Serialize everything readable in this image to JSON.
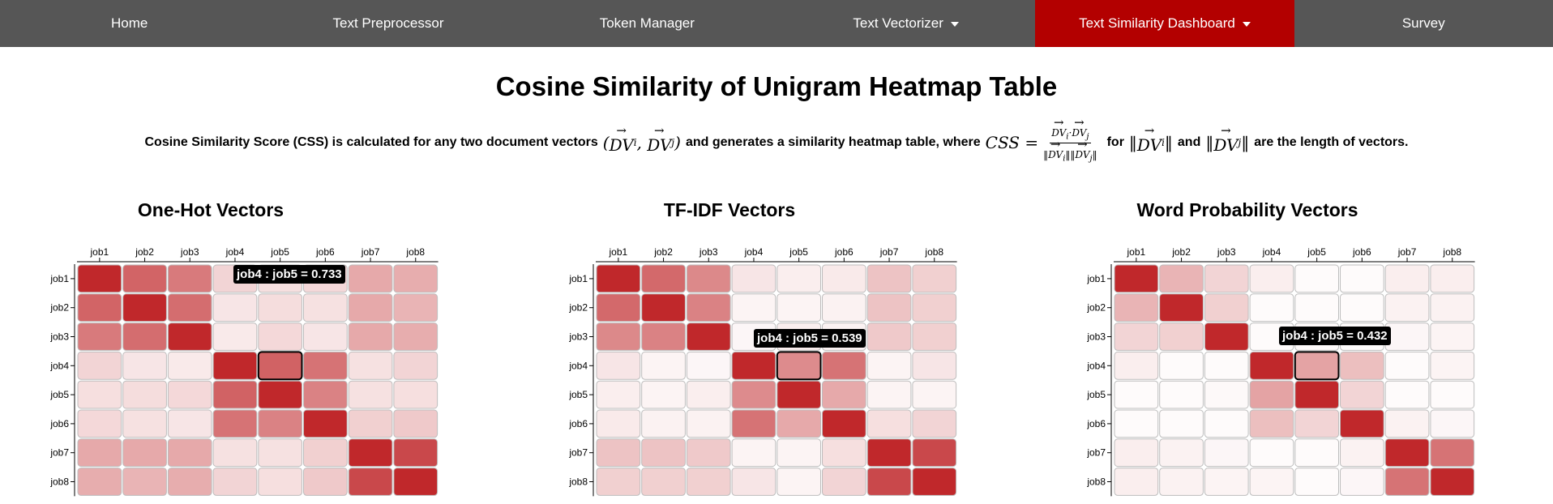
{
  "nav": {
    "items": [
      {
        "label": "Home",
        "dropdown": false,
        "active": false
      },
      {
        "label": "Text Preprocessor",
        "dropdown": false,
        "active": false
      },
      {
        "label": "Token Manager",
        "dropdown": false,
        "active": false
      },
      {
        "label": "Text Vectorizer",
        "dropdown": true,
        "active": false
      },
      {
        "label": "Text Similarity Dashboard",
        "dropdown": true,
        "active": true
      },
      {
        "label": "Survey",
        "dropdown": false,
        "active": false
      }
    ]
  },
  "page": {
    "title": "Cosine Similarity of Unigram Heatmap Table",
    "desc_part1": "Cosine Similarity Score (CSS) is calculated for any two document vectors",
    "desc_part2": "and generates a similarity heatmap table, where",
    "desc_part3": "for",
    "desc_part4": "and",
    "desc_part5": "are the length of vectors."
  },
  "colors": {
    "nav_bg": "#565656",
    "nav_active": "#b30000",
    "high": "#c0282b",
    "low": "#ffffff"
  },
  "chart_data": [
    {
      "type": "heatmap",
      "title": "One-Hot Vectors",
      "x_labels": [
        "job1",
        "job2",
        "job3",
        "job4",
        "job5",
        "job6",
        "job7",
        "job8"
      ],
      "y_labels": [
        "job1",
        "job2",
        "job3",
        "job4",
        "job5",
        "job6",
        "job7",
        "job8"
      ],
      "values": [
        [
          1.0,
          0.72,
          0.62,
          0.2,
          0.15,
          0.18,
          0.4,
          0.38
        ],
        [
          0.72,
          1.0,
          0.68,
          0.12,
          0.16,
          0.14,
          0.4,
          0.35
        ],
        [
          0.62,
          0.68,
          1.0,
          0.1,
          0.18,
          0.12,
          0.4,
          0.38
        ],
        [
          0.2,
          0.12,
          0.1,
          1.0,
          0.73,
          0.65,
          0.14,
          0.2
        ],
        [
          0.15,
          0.16,
          0.18,
          0.73,
          1.0,
          0.58,
          0.14,
          0.15
        ],
        [
          0.18,
          0.14,
          0.12,
          0.65,
          0.58,
          1.0,
          0.22,
          0.25
        ],
        [
          0.4,
          0.4,
          0.4,
          0.14,
          0.14,
          0.22,
          1.0,
          0.85
        ],
        [
          0.38,
          0.35,
          0.38,
          0.2,
          0.15,
          0.25,
          0.85,
          1.0
        ]
      ],
      "tooltip": "job4 : job5 = 0.733",
      "highlight": [
        3,
        4
      ]
    },
    {
      "type": "heatmap",
      "title": "TF-IDF Vectors",
      "x_labels": [
        "job1",
        "job2",
        "job3",
        "job4",
        "job5",
        "job6",
        "job7",
        "job8"
      ],
      "y_labels": [
        "job1",
        "job2",
        "job3",
        "job4",
        "job5",
        "job6",
        "job7",
        "job8"
      ],
      "values": [
        [
          1.0,
          0.7,
          0.55,
          0.12,
          0.08,
          0.1,
          0.28,
          0.22
        ],
        [
          0.7,
          1.0,
          0.58,
          0.05,
          0.05,
          0.06,
          0.28,
          0.22
        ],
        [
          0.55,
          0.58,
          1.0,
          0.04,
          0.08,
          0.06,
          0.25,
          0.22
        ],
        [
          0.12,
          0.05,
          0.04,
          1.0,
          0.54,
          0.65,
          0.05,
          0.12
        ],
        [
          0.08,
          0.05,
          0.08,
          0.54,
          1.0,
          0.4,
          0.05,
          0.05
        ],
        [
          0.1,
          0.06,
          0.06,
          0.65,
          0.4,
          1.0,
          0.15,
          0.2
        ],
        [
          0.28,
          0.28,
          0.25,
          0.05,
          0.05,
          0.15,
          1.0,
          0.85
        ],
        [
          0.22,
          0.22,
          0.22,
          0.12,
          0.05,
          0.2,
          0.85,
          1.0
        ]
      ],
      "tooltip": "job4 : job5 = 0.539",
      "highlight": [
        3,
        4
      ]
    },
    {
      "type": "heatmap",
      "title": "Word Probability Vectors",
      "x_labels": [
        "job1",
        "job2",
        "job3",
        "job4",
        "job5",
        "job6",
        "job7",
        "job8"
      ],
      "y_labels": [
        "job1",
        "job2",
        "job3",
        "job4",
        "job5",
        "job6",
        "job7",
        "job8"
      ],
      "values": [
        [
          1.0,
          0.35,
          0.2,
          0.08,
          0.02,
          0.02,
          0.08,
          0.08
        ],
        [
          0.35,
          1.0,
          0.22,
          0.02,
          0.02,
          0.02,
          0.06,
          0.06
        ],
        [
          0.2,
          0.22,
          1.0,
          0.02,
          0.03,
          0.02,
          0.04,
          0.05
        ],
        [
          0.08,
          0.02,
          0.02,
          1.0,
          0.43,
          0.3,
          0.02,
          0.05
        ],
        [
          0.02,
          0.02,
          0.03,
          0.43,
          1.0,
          0.2,
          0.02,
          0.02
        ],
        [
          0.02,
          0.02,
          0.02,
          0.3,
          0.2,
          1.0,
          0.06,
          0.04
        ],
        [
          0.08,
          0.06,
          0.04,
          0.02,
          0.02,
          0.06,
          1.0,
          0.65
        ],
        [
          0.08,
          0.06,
          0.05,
          0.05,
          0.02,
          0.04,
          0.65,
          1.0
        ]
      ],
      "tooltip": "job4 : job5 = 0.432",
      "highlight": [
        3,
        4
      ]
    }
  ]
}
